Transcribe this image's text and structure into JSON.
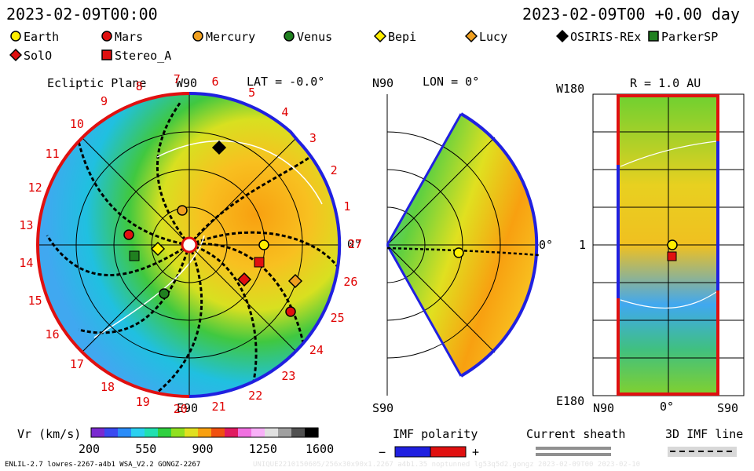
{
  "header": {
    "datetime_left": "2023-02-09T00:00",
    "datetime_right": "2023-02-09T00 +0.00 day"
  },
  "legend": [
    {
      "label": "Earth",
      "marker": "circle",
      "color": "#ffee00"
    },
    {
      "label": "Mars",
      "marker": "circle",
      "color": "#e01010"
    },
    {
      "label": "Mercury",
      "marker": "circle",
      "color": "#f0a020"
    },
    {
      "label": "Venus",
      "marker": "circle",
      "color": "#208020"
    },
    {
      "label": "Bepi",
      "marker": "diamond",
      "color": "#ffee00"
    },
    {
      "label": "Lucy",
      "marker": "diamond",
      "color": "#f0a020"
    },
    {
      "label": "OSIRIS-REx",
      "marker": "diamond",
      "color": "#000000"
    },
    {
      "label": "ParkerSP",
      "marker": "square",
      "color": "#208020"
    },
    {
      "label": "SolO",
      "marker": "diamond",
      "color": "#e01010"
    },
    {
      "label": "Stereo_A",
      "marker": "square",
      "color": "#e01010"
    }
  ],
  "panels": {
    "ecliptic": {
      "title": "Ecliptic Plane",
      "top_label": "W90",
      "bottom_label": "E90",
      "right_label": "0°",
      "lat": "LAT = -0.0°",
      "carrington_ticks": [
        "1",
        "2",
        "3",
        "4",
        "5",
        "6",
        "7",
        "8",
        "9",
        "10",
        "11",
        "12",
        "13",
        "14",
        "15",
        "16",
        "17",
        "18",
        "19",
        "20",
        "21",
        "22",
        "23",
        "24",
        "25",
        "26",
        "27"
      ]
    },
    "meridional": {
      "top_label": "N90",
      "bottom_label": "S90",
      "lon": "LON = 0°",
      "right_label": "0°"
    },
    "sphere": {
      "title": "R = 1.0 AU",
      "top_left_label": "W180",
      "bottom_left_label": "E180",
      "mid_left_label": "1",
      "x_labels": [
        "N90",
        "0°",
        "S90"
      ]
    }
  },
  "colorbar": {
    "label": "Vr (km/s)",
    "ticks": [
      "200",
      "550",
      "900",
      "1250",
      "1600"
    ],
    "colors": [
      "#7a2ad0",
      "#3a4af0",
      "#2a8cf8",
      "#2ad0f0",
      "#20e0b0",
      "#30d040",
      "#90e020",
      "#e0e020",
      "#f8a010",
      "#f05010",
      "#e01a60",
      "#f070e0",
      "#f8b0f8",
      "#e0e0e0",
      "#a0a0a0",
      "#505050",
      "#000000"
    ]
  },
  "bottom_legend": {
    "imf_polarity": "IMF polarity",
    "minus": "−",
    "plus": "+",
    "current_sheath": "Current sheath",
    "imf_line": "3D IMF line"
  },
  "footer": {
    "left": "ENLIL-2.7 lowres-2267-a4b1 WSA_V2.2 GONGZ-2267",
    "right": "UNIQUE2210150605/256x30x90x1.2267 a4b1.35 noptunned lg53q5d2.gongz 2023-02-09T00 2023-02-10"
  }
}
